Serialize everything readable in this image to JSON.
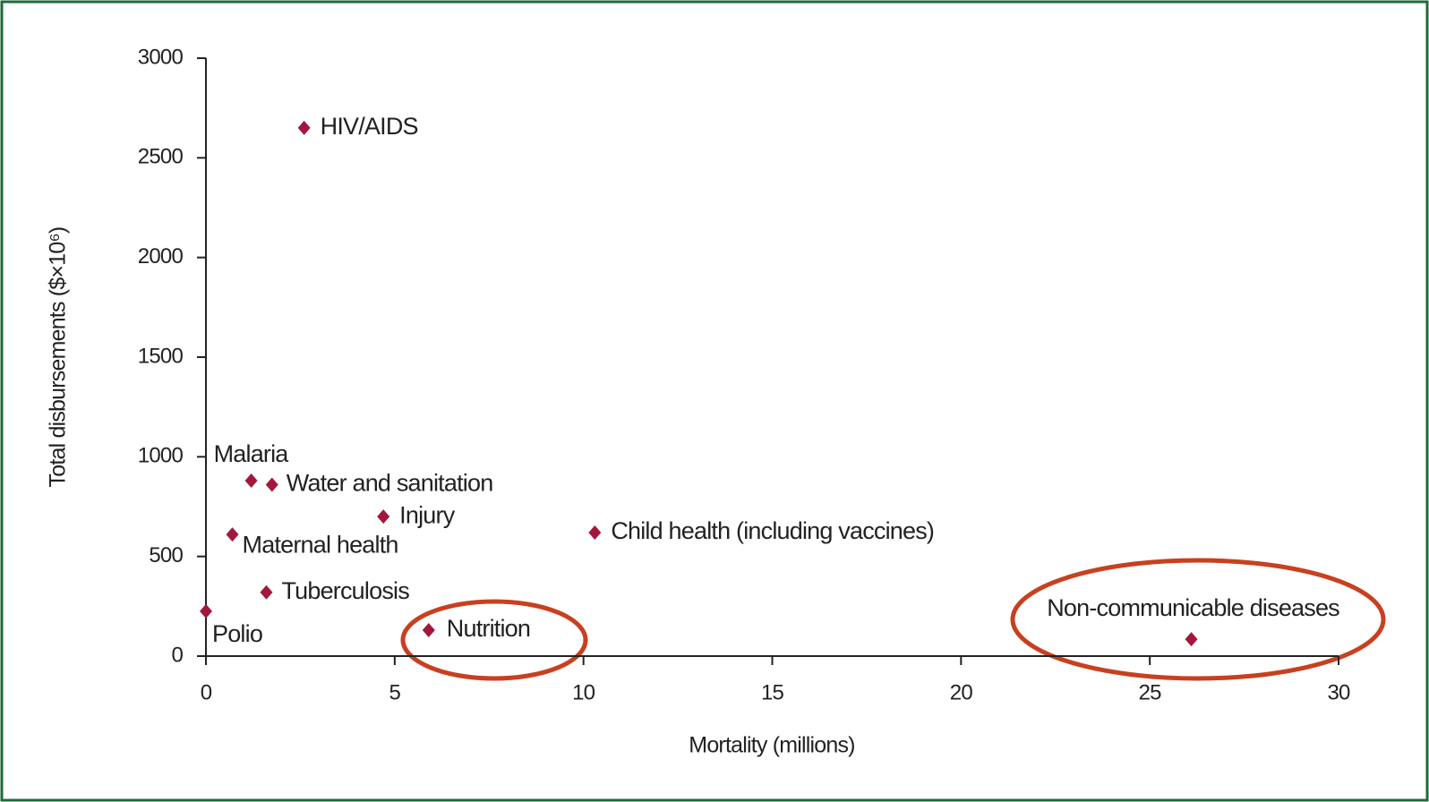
{
  "chart_data": {
    "type": "scatter",
    "x_label": "Mortality (millions)",
    "y_label": "Total disbursements ($×10⁶)",
    "x": [
      2.6,
      1.2,
      1.75,
      4.7,
      0.7,
      10.3,
      1.6,
      0,
      5.9,
      26.1
    ],
    "values": [
      2650,
      880,
      860,
      700,
      610,
      620,
      320,
      225,
      130,
      85
    ],
    "point_labels": [
      "HIV/AIDS",
      "Malaria",
      "Water and sanitation",
      "Injury",
      "Maternal health",
      "Child health (including vaccines)",
      "Tuberculosis",
      "Polio",
      "Nutrition",
      "Non-communicable diseases"
    ],
    "color": "#a3173c",
    "xlim": [
      0,
      30
    ],
    "xticks": [
      0,
      5,
      10,
      15,
      20,
      25,
      30
    ],
    "ylim": [
      0,
      3000
    ],
    "yticks": [
      0,
      500,
      1000,
      1500,
      2000,
      2500,
      3000
    ]
  }
}
